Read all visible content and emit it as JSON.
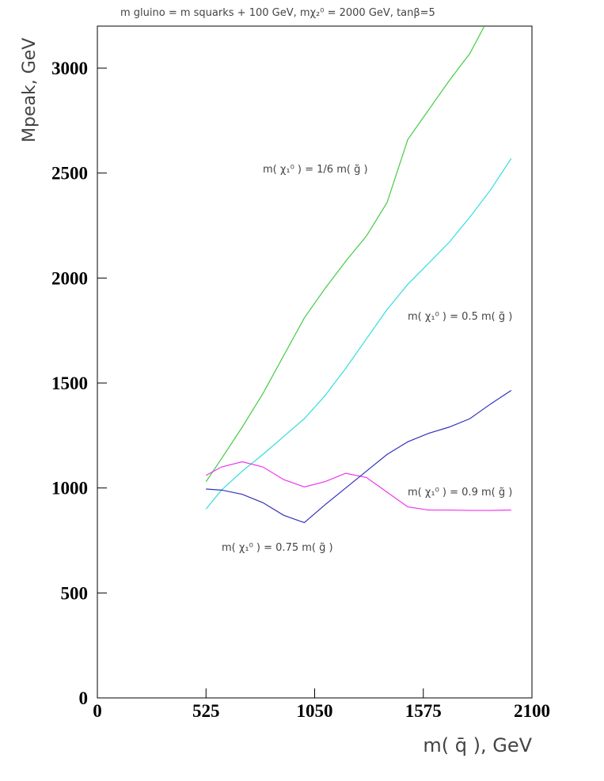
{
  "chart_data": {
    "type": "line",
    "title": "m gluino = m squarks + 100 GeV, mχ₂⁰ = 2000 GeV, tanβ=5",
    "xlabel": "m( q̄ ),  GeV",
    "ylabel": "Mpeak,  GeV",
    "xlim": [
      0,
      2100
    ],
    "xticks": [
      0,
      525,
      1050,
      1575,
      2100
    ],
    "ylim": [
      0,
      3200
    ],
    "yticks": [
      0,
      500,
      1000,
      1500,
      2000,
      2500,
      3000
    ],
    "series": [
      {
        "name": "m( χ₁⁰ ) = 1/6 m( g̃ )",
        "color": "#44cc44",
        "x": [
          525,
          600,
          700,
          800,
          900,
          1000,
          1100,
          1200,
          1300,
          1400,
          1500,
          1600,
          1700,
          1800,
          1870
        ],
        "values": [
          1030,
          1140,
          1290,
          1450,
          1630,
          1810,
          1950,
          2080,
          2200,
          2360,
          2660,
          2800,
          2940,
          3070,
          3200
        ]
      },
      {
        "name": "m( χ₁⁰ ) = 0.5 m( g̃ )",
        "color": "#33dddd",
        "x": [
          525,
          600,
          700,
          800,
          900,
          1000,
          1100,
          1200,
          1300,
          1400,
          1500,
          1600,
          1700,
          1800,
          1900,
          2000
        ],
        "values": [
          900,
          990,
          1080,
          1160,
          1245,
          1330,
          1440,
          1570,
          1710,
          1850,
          1970,
          2070,
          2170,
          2290,
          2420,
          2570
        ]
      },
      {
        "name": "m( χ₁⁰ ) = 0.9 m( g̃ )",
        "color": "#ee33ee",
        "x": [
          525,
          600,
          700,
          800,
          900,
          1000,
          1100,
          1200,
          1300,
          1400,
          1500,
          1600,
          1700,
          1800,
          1900,
          2000
        ],
        "values": [
          1060,
          1100,
          1125,
          1100,
          1040,
          1005,
          1030,
          1070,
          1050,
          980,
          910,
          895,
          895,
          893,
          893,
          895
        ]
      },
      {
        "name": "m( χ₁⁰ ) = 0.75 m( g̃ )",
        "color": "#3333bb",
        "x": [
          525,
          600,
          700,
          800,
          900,
          1000,
          1100,
          1200,
          1300,
          1400,
          1500,
          1600,
          1700,
          1800,
          1900,
          2000
        ],
        "values": [
          995,
          990,
          970,
          930,
          870,
          835,
          920,
          1000,
          1080,
          1160,
          1220,
          1260,
          1290,
          1330,
          1400,
          1465
        ]
      }
    ]
  }
}
